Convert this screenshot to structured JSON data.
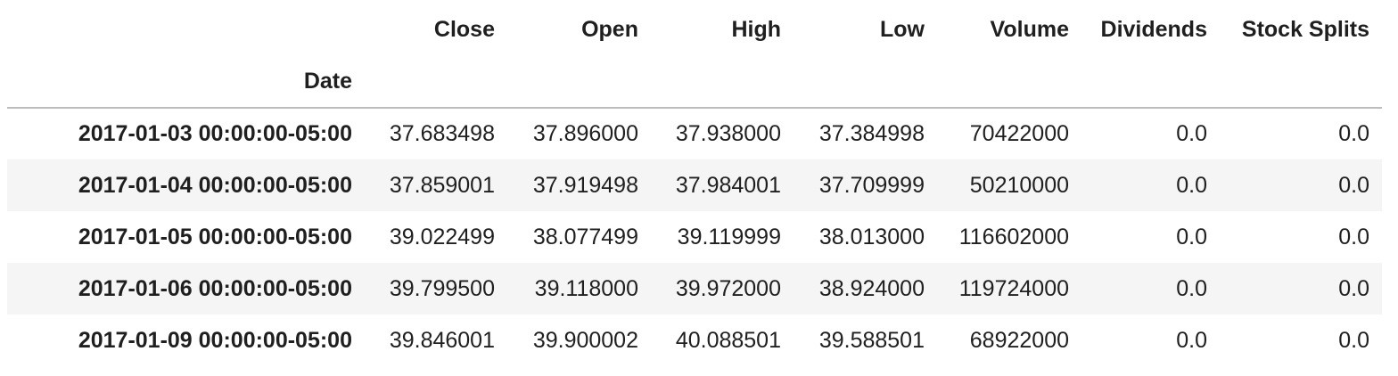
{
  "table": {
    "columns": [
      "Close",
      "Open",
      "High",
      "Low",
      "Volume",
      "Dividends",
      "Stock Splits"
    ],
    "index_name": "Date",
    "rows": [
      {
        "index": "2017-01-03 00:00:00-05:00",
        "values": [
          "37.683498",
          "37.896000",
          "37.938000",
          "37.384998",
          "70422000",
          "0.0",
          "0.0"
        ]
      },
      {
        "index": "2017-01-04 00:00:00-05:00",
        "values": [
          "37.859001",
          "37.919498",
          "37.984001",
          "37.709999",
          "50210000",
          "0.0",
          "0.0"
        ]
      },
      {
        "index": "2017-01-05 00:00:00-05:00",
        "values": [
          "39.022499",
          "38.077499",
          "39.119999",
          "38.013000",
          "116602000",
          "0.0",
          "0.0"
        ]
      },
      {
        "index": "2017-01-06 00:00:00-05:00",
        "values": [
          "39.799500",
          "39.118000",
          "39.972000",
          "38.924000",
          "119724000",
          "0.0",
          "0.0"
        ]
      },
      {
        "index": "2017-01-09 00:00:00-05:00",
        "values": [
          "39.846001",
          "39.900002",
          "40.088501",
          "39.588501",
          "68922000",
          "0.0",
          "0.0"
        ]
      }
    ]
  }
}
